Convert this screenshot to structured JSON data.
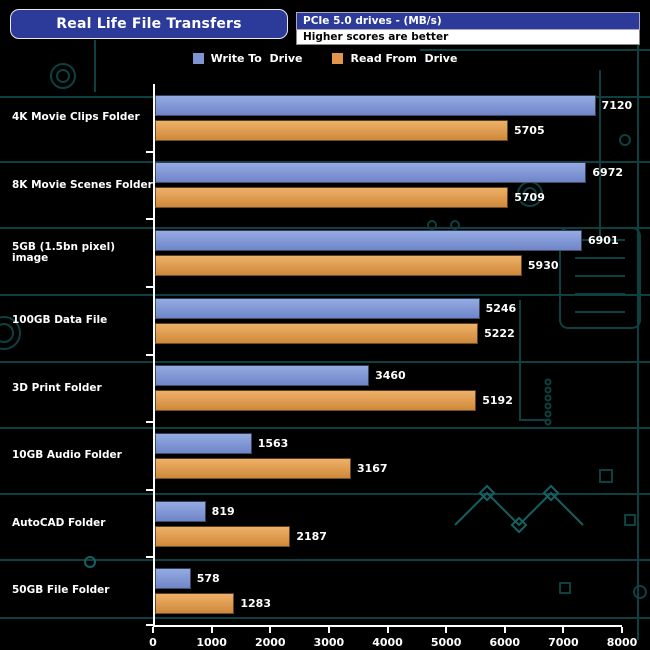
{
  "header": {
    "title": "Real Life File Transfers",
    "drives_label": "PCIe 5.0 drives - (MB/s)",
    "note_label": "Higher scores are better"
  },
  "legend": {
    "write_label": "Write To  Drive",
    "read_label": "Read From  Drive"
  },
  "chart_data": {
    "type": "bar",
    "orientation": "horizontal",
    "title": "Real Life File Transfers",
    "subtitle": "PCIe 5.0 drives - (MB/s)",
    "note": "Higher scores are better",
    "categories": [
      "4K Movie Clips Folder",
      "8K Movie Scenes Folder",
      "5GB (1.5bn pixel) image",
      "100GB Data File",
      "3D Print Folder",
      "10GB Audio Folder",
      "AutoCAD Folder",
      "50GB File Folder"
    ],
    "series": [
      {
        "name": "Write To Drive",
        "color": "#7f94d2",
        "values": [
          7120,
          6972,
          6901,
          5246,
          3460,
          1563,
          819,
          578
        ]
      },
      {
        "name": "Read From Drive",
        "color": "#e0954a",
        "values": [
          5705,
          5709,
          5930,
          5222,
          5192,
          3167,
          2187,
          1283
        ]
      }
    ],
    "xlim": [
      0,
      8000
    ],
    "xticks": [
      0,
      1000,
      2000,
      3000,
      4000,
      5000,
      6000,
      7000,
      8000
    ],
    "xlabel": "MB/s",
    "grid": false,
    "legend_position": "top"
  },
  "colors": {
    "background": "#000000",
    "circuit_trace": "#0d4040",
    "circuit_accent": "#156060",
    "title_box": "#2c3a99",
    "write_bar": "#7f94d2",
    "read_bar": "#e0954a",
    "axis": "#ffffff",
    "text": "#ffffff"
  }
}
